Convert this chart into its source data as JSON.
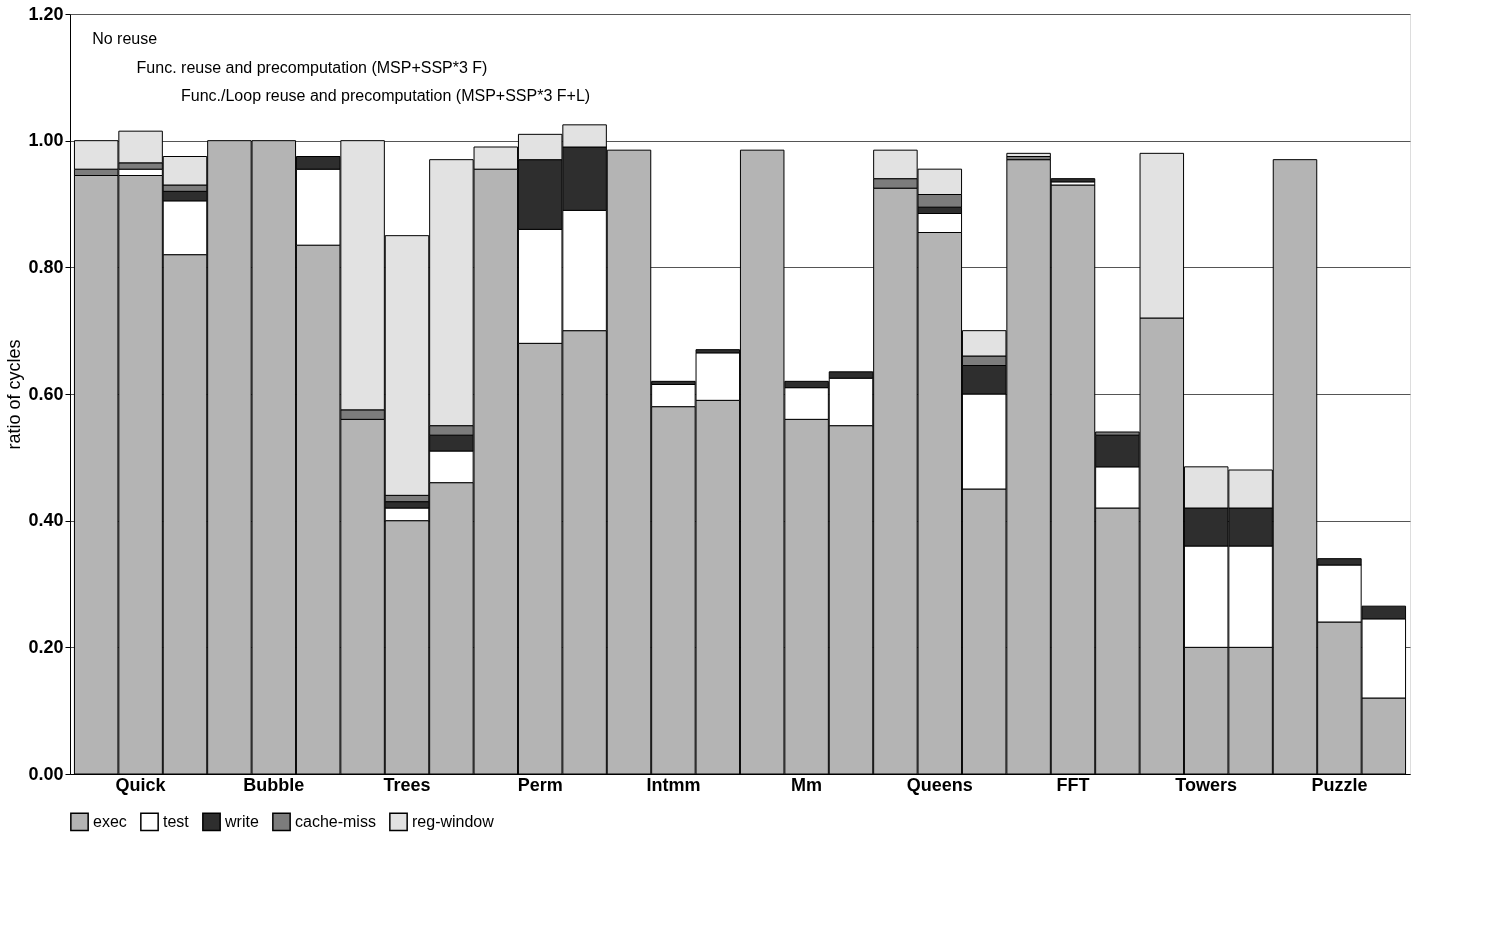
{
  "chart_data": {
    "type": "bar",
    "stacked": true,
    "ylabel": "ratio of cycles",
    "categories": [
      null,
      "Quick",
      null,
      null,
      "Bubble",
      null,
      null,
      "Trees",
      null,
      null,
      "Perm",
      null,
      null,
      "Intmm",
      null,
      null,
      "Mm",
      null,
      null,
      "Queens",
      null,
      null,
      "FFT",
      null,
      null,
      "Towers",
      null,
      null,
      "Puzzle",
      null
    ],
    "series": [
      {
        "name": "exec",
        "color": "#b4b4b4",
        "values": [
          0.945,
          0.945,
          0.82,
          1.0,
          1.0,
          0.835,
          0.56,
          0.4,
          0.46,
          0.955,
          0.68,
          0.7,
          0.985,
          0.58,
          0.59,
          0.985,
          0.56,
          0.55,
          0.925,
          0.855,
          0.45,
          0.97,
          0.93,
          0.42,
          0.72,
          0.2,
          0.2,
          0.97,
          0.24,
          0.12
        ]
      },
      {
        "name": "test",
        "color": "#ffffff",
        "values": [
          0,
          0.01,
          0.085,
          0,
          0,
          0.12,
          0,
          0.02,
          0.05,
          0,
          0.18,
          0.19,
          0,
          0.035,
          0.075,
          0,
          0.05,
          0.075,
          0,
          0.03,
          0.15,
          0,
          0.005,
          0.065,
          0,
          0.16,
          0.16,
          0,
          0.09,
          0.125
        ]
      },
      {
        "name": "write",
        "color": "#2e2e2e",
        "values": [
          0,
          0,
          0.015,
          0,
          0,
          0.02,
          0,
          0.01,
          0.025,
          0,
          0.11,
          0.1,
          0,
          0.005,
          0.005,
          0,
          0.01,
          0.01,
          0,
          0.01,
          0.045,
          0,
          0.005,
          0.05,
          0,
          0.06,
          0.06,
          0,
          0.01,
          0.02
        ]
      },
      {
        "name": "cache-miss",
        "color": "#7c7c7c",
        "values": [
          0.01,
          0.01,
          0.01,
          0,
          0,
          0,
          0.015,
          0.01,
          0.015,
          0,
          0,
          0,
          0,
          0,
          0,
          0,
          0,
          0,
          0.015,
          0.02,
          0.015,
          0.005,
          0,
          0.005,
          0,
          0,
          0,
          0,
          0,
          0
        ]
      },
      {
        "name": "reg-window",
        "color": "#e2e2e2",
        "values": [
          0.045,
          0.05,
          0.045,
          0,
          0,
          0,
          0.425,
          0.41,
          0.42,
          0.035,
          0.04,
          0.035,
          0,
          0,
          0,
          0,
          0,
          0,
          0.045,
          0.04,
          0.04,
          0.005,
          0,
          0,
          0.26,
          0.065,
          0.06,
          0,
          0,
          0
        ]
      }
    ],
    "ylim": [
      0,
      1.2
    ],
    "yticks": [
      {
        "value": 0,
        "label": "0.00"
      },
      {
        "value": 0.2,
        "label": "0.20"
      },
      {
        "value": 0.4,
        "label": "0.40"
      },
      {
        "value": 0.6,
        "label": "0.60"
      },
      {
        "value": 0.8,
        "label": "0.80"
      },
      {
        "value": 1.0,
        "label": "1.00"
      },
      {
        "value": 1.2,
        "label": "1.20"
      }
    ],
    "annotations": [
      "No reuse",
      "Func. reuse and precomputation (MSP+SSP*3   F)",
      "Func./Loop reuse and precomputation (MSP+SSP*3   F+L)"
    ],
    "grid": "y",
    "legend": "bottom"
  }
}
